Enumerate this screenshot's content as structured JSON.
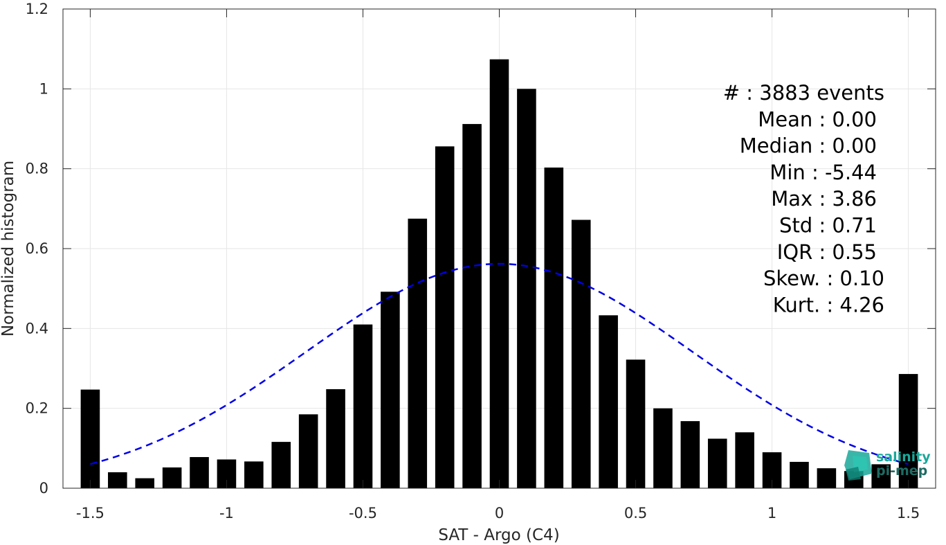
{
  "chart_data": {
    "type": "bar",
    "xlabel": "SAT - Argo (C4)",
    "ylabel": "Normalized histogram",
    "xlim": [
      -1.6,
      1.6
    ],
    "ylim": [
      0,
      1.2
    ],
    "xticks": [
      -1.5,
      -1,
      -0.5,
      0,
      0.5,
      1,
      1.5
    ],
    "xtick_labels": [
      "-1.5",
      "-1",
      "-0.5",
      "0",
      "0.5",
      "1",
      "1.5"
    ],
    "yticks": [
      0,
      0.2,
      0.4,
      0.6,
      0.8,
      1,
      1.2
    ],
    "ytick_labels": [
      "0",
      "0.2",
      "0.4",
      "0.6",
      "0.8",
      "1",
      "1.2"
    ],
    "grid": true,
    "bar_color": "#000000",
    "bar_width": 0.07,
    "series": [
      {
        "x": [
          -1.5,
          -1.4,
          -1.3,
          -1.2,
          -1.1,
          -1.0,
          -0.9,
          -0.8,
          -0.7,
          -0.6,
          -0.5,
          -0.4,
          -0.3,
          -0.2,
          -0.1,
          0.0,
          0.1,
          0.2,
          0.3,
          0.4,
          0.5,
          0.6,
          0.7,
          0.8,
          0.9,
          1.0,
          1.1,
          1.2,
          1.3,
          1.4,
          1.5
        ],
        "values": [
          0.247,
          0.04,
          0.025,
          0.052,
          0.078,
          0.072,
          0.067,
          0.116,
          0.185,
          0.248,
          0.41,
          0.492,
          0.675,
          0.856,
          0.912,
          1.074,
          1.0,
          0.803,
          0.672,
          0.433,
          0.322,
          0.2,
          0.168,
          0.124,
          0.14,
          0.09,
          0.066,
          0.05,
          0.043,
          0.06,
          0.286
        ]
      }
    ],
    "fit_curve": {
      "style": "dashed",
      "color": "#0000e6",
      "mean": 0.0,
      "std": 0.71,
      "x_range": [
        -1.5,
        1.5
      ]
    },
    "stats": [
      {
        "label": "#  : 3883 events"
      },
      {
        "label": "Mean : 0.00"
      },
      {
        "label": "Median : 0.00"
      },
      {
        "label": "Min : -5.44"
      },
      {
        "label": "Max : 3.86"
      },
      {
        "label": "Std : 0.71"
      },
      {
        "label": "IQR : 0.55"
      },
      {
        "label": "Skew. : 0.10"
      },
      {
        "label": "Kurt. : 4.26"
      }
    ]
  },
  "logo": {
    "line1": "salinity",
    "line2": "pi-mep",
    "color": "#1aa89a"
  }
}
